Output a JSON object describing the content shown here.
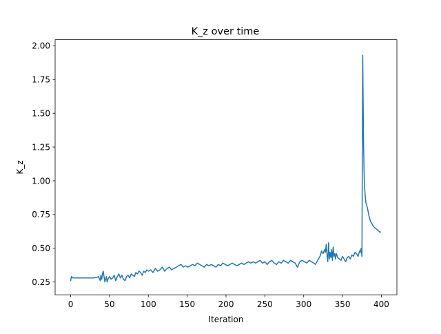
{
  "chart_data": {
    "type": "line",
    "title": "K_z over time",
    "xlabel": "Iteration",
    "ylabel": "K_z",
    "xlim": [
      -20,
      420
    ],
    "ylim": [
      0.155,
      2.045
    ],
    "xticks": [
      0,
      50,
      100,
      150,
      200,
      250,
      300,
      350,
      400
    ],
    "xtick_labels": [
      "0",
      "50",
      "100",
      "150",
      "200",
      "250",
      "300",
      "350",
      "400"
    ],
    "yticks": [
      0.25,
      0.5,
      0.75,
      1.0,
      1.25,
      1.5,
      1.75,
      2.0
    ],
    "ytick_labels": [
      "0.25",
      "0.50",
      "0.75",
      "1.00",
      "1.25",
      "1.50",
      "1.75",
      "2.00"
    ],
    "grid": false,
    "series": [
      {
        "color": "#1f77b4",
        "x": [
          0,
          1,
          3,
          6,
          10,
          15,
          20,
          25,
          30,
          34,
          36,
          38,
          39,
          40,
          41,
          42,
          43,
          44,
          45,
          46,
          47,
          48,
          49,
          50,
          52,
          54,
          56,
          58,
          60,
          62,
          64,
          66,
          68,
          70,
          72,
          74,
          76,
          78,
          80,
          82,
          84,
          86,
          88,
          90,
          92,
          94,
          96,
          98,
          100,
          103,
          106,
          109,
          112,
          115,
          118,
          121,
          124,
          127,
          130,
          133,
          136,
          139,
          142,
          145,
          148,
          151,
          154,
          157,
          160,
          163,
          166,
          169,
          172,
          175,
          178,
          181,
          184,
          187,
          190,
          193,
          196,
          199,
          202,
          205,
          208,
          211,
          214,
          217,
          220,
          223,
          226,
          229,
          232,
          235,
          238,
          241,
          244,
          247,
          250,
          253,
          256,
          259,
          262,
          265,
          268,
          271,
          274,
          277,
          280,
          283,
          286,
          289,
          292,
          295,
          298,
          301,
          304,
          307,
          310,
          313,
          315,
          317,
          319,
          321,
          323,
          325,
          327,
          328,
          329,
          330,
          331,
          332,
          333,
          334,
          335,
          336,
          337,
          338,
          339,
          340,
          341,
          342,
          344,
          346,
          348,
          350,
          352,
          354,
          356,
          358,
          360,
          362,
          364,
          366,
          368,
          370,
          372,
          373,
          374,
          375,
          376,
          377,
          378,
          379,
          380,
          382,
          384,
          386,
          388,
          390,
          392,
          394,
          396,
          398,
          399
        ],
        "y": [
          0.26,
          0.29,
          0.28,
          0.28,
          0.28,
          0.28,
          0.28,
          0.28,
          0.28,
          0.285,
          0.29,
          0.26,
          0.3,
          0.27,
          0.31,
          0.33,
          0.29,
          0.25,
          0.27,
          0.29,
          0.25,
          0.27,
          0.28,
          0.29,
          0.27,
          0.28,
          0.3,
          0.26,
          0.29,
          0.31,
          0.28,
          0.3,
          0.27,
          0.26,
          0.29,
          0.3,
          0.28,
          0.31,
          0.3,
          0.29,
          0.32,
          0.31,
          0.33,
          0.32,
          0.3,
          0.33,
          0.32,
          0.34,
          0.33,
          0.34,
          0.32,
          0.35,
          0.33,
          0.34,
          0.36,
          0.33,
          0.35,
          0.36,
          0.34,
          0.35,
          0.36,
          0.37,
          0.38,
          0.36,
          0.37,
          0.36,
          0.37,
          0.38,
          0.37,
          0.39,
          0.38,
          0.37,
          0.36,
          0.38,
          0.37,
          0.38,
          0.37,
          0.36,
          0.38,
          0.37,
          0.39,
          0.38,
          0.37,
          0.38,
          0.39,
          0.38,
          0.37,
          0.38,
          0.39,
          0.38,
          0.39,
          0.4,
          0.39,
          0.4,
          0.39,
          0.4,
          0.41,
          0.39,
          0.4,
          0.38,
          0.4,
          0.41,
          0.39,
          0.38,
          0.4,
          0.39,
          0.41,
          0.4,
          0.39,
          0.41,
          0.4,
          0.39,
          0.36,
          0.4,
          0.41,
          0.4,
          0.39,
          0.41,
          0.4,
          0.39,
          0.38,
          0.4,
          0.42,
          0.44,
          0.48,
          0.46,
          0.49,
          0.47,
          0.53,
          0.45,
          0.4,
          0.54,
          0.42,
          0.47,
          0.43,
          0.49,
          0.41,
          0.51,
          0.44,
          0.46,
          0.42,
          0.46,
          0.43,
          0.42,
          0.41,
          0.44,
          0.42,
          0.4,
          0.43,
          0.44,
          0.42,
          0.45,
          0.44,
          0.47,
          0.46,
          0.44,
          0.48,
          0.47,
          0.5,
          0.44,
          1.93,
          1.3,
          1.0,
          0.9,
          0.84,
          0.8,
          0.74,
          0.7,
          0.68,
          0.66,
          0.65,
          0.64,
          0.63,
          0.62,
          0.62
        ]
      }
    ]
  }
}
